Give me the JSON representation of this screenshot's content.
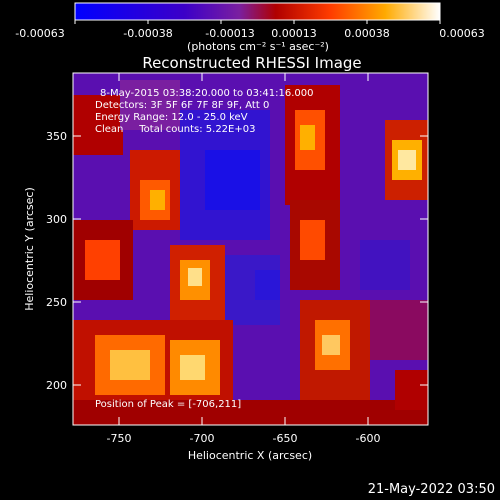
{
  "colorbar": {
    "ticks": [
      "-0.00063",
      "-0.00038",
      "-0.00013",
      "0.00013",
      "0.00038",
      "0.00063"
    ],
    "unit_label": "(photons cm⁻² s⁻¹ asec⁻²)"
  },
  "title": "Reconstructed RHESSI Image",
  "axes": {
    "xlabel": "Heliocentric X (arcsec)",
    "ylabel": "Heliocentric Y (arcsec)",
    "x_ticks": [
      "-750",
      "-700",
      "-650",
      "-600"
    ],
    "y_ticks": [
      "200",
      "250",
      "300",
      "350"
    ]
  },
  "annotations": {
    "time_range": "8-May-2015 03:38:20.000 to 03:41:16.000",
    "detectors": "Detectors: 3F 5F 6F 7F 8F 9F, Att 0",
    "energy_range": "Energy Range: 12.0 - 25.0 keV",
    "clean_counts": "Clean     Total counts: 5.22E+03",
    "peak_position": "Position of Peak = [-706,211]"
  },
  "footer_timestamp": "21-May-2022 03:50"
}
